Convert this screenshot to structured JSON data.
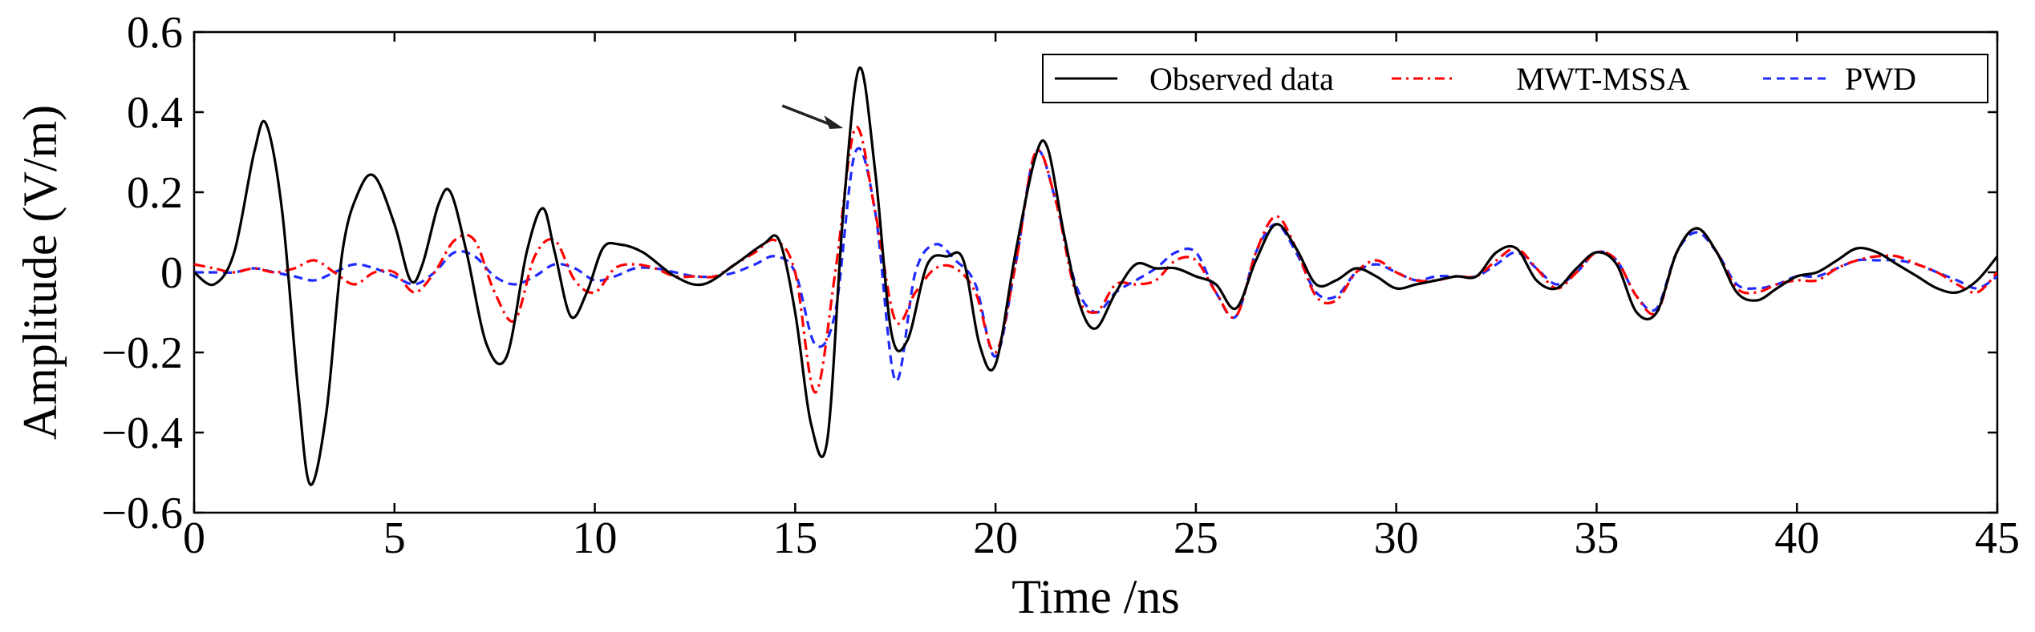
{
  "chart_data": {
    "type": "line",
    "title": "",
    "xlabel": "Time /ns",
    "ylabel": "Amplitude (V/m)",
    "xlim": [
      0,
      45
    ],
    "ylim": [
      -0.6,
      0.6
    ],
    "xticks": [
      0,
      5,
      10,
      15,
      20,
      25,
      30,
      35,
      40,
      45
    ],
    "xtick_labels": [
      "0",
      "5",
      "10",
      "15",
      "20",
      "25",
      "30",
      "35",
      "40",
      "45"
    ],
    "yticks": [
      0.6,
      0.4,
      0.2,
      0,
      -0.2,
      -0.4,
      -0.6
    ],
    "ytick_labels": [
      "0.6",
      "0.4",
      "0.2",
      "0",
      "−0.2",
      "−0.4",
      "−0.6"
    ],
    "grid": false,
    "legend_position": "top-right",
    "annotation": {
      "type": "arrow",
      "points_to": [
        16.2,
        0.36
      ]
    },
    "series": [
      {
        "name": "Observed data",
        "color": "#000000",
        "style": "solid",
        "x": [
          0,
          0.5,
          1,
          1.5,
          1.8,
          2.2,
          2.6,
          2.9,
          3.3,
          3.7,
          4.1,
          4.5,
          5,
          5.4,
          5.7,
          6.1,
          6.4,
          6.8,
          7.3,
          7.8,
          8.3,
          8.7,
          9,
          9.4,
          9.8,
          10.2,
          10.6,
          11.2,
          12,
          12.7,
          13.5,
          14.2,
          14.6,
          15,
          15.4,
          15.8,
          16.2,
          16.6,
          17,
          17.4,
          17.8,
          18.3,
          18.8,
          19.2,
          19.6,
          20,
          20.5,
          21,
          21.3,
          21.7,
          22.1,
          22.5,
          23,
          23.5,
          24,
          24.5,
          25,
          25.5,
          26,
          26.5,
          27,
          27.5,
          28,
          28.5,
          29,
          29.5,
          30,
          30.5,
          31,
          31.5,
          32,
          32.5,
          33,
          33.5,
          34,
          34.5,
          35,
          35.5,
          36,
          36.5,
          37,
          37.5,
          38,
          38.5,
          39,
          39.5,
          40,
          40.5,
          41,
          41.5,
          42,
          42.5,
          43,
          43.5,
          44,
          44.5,
          45
        ],
        "y": [
          0,
          -0.03,
          0.05,
          0.3,
          0.37,
          0.15,
          -0.3,
          -0.53,
          -0.35,
          0.05,
          0.2,
          0.24,
          0.12,
          -0.02,
          0.02,
          0.17,
          0.2,
          0.05,
          -0.18,
          -0.21,
          0.05,
          0.16,
          0.05,
          -0.11,
          -0.05,
          0.06,
          0.07,
          0.05,
          -0.01,
          -0.03,
          0.02,
          0.07,
          0.08,
          -0.1,
          -0.38,
          -0.42,
          0.15,
          0.51,
          0.25,
          -0.15,
          -0.17,
          0.02,
          0.04,
          0.03,
          -0.18,
          -0.23,
          0.05,
          0.29,
          0.31,
          0.1,
          -0.08,
          -0.14,
          -0.05,
          0.02,
          0.01,
          0.01,
          -0.01,
          -0.03,
          -0.09,
          0.03,
          0.12,
          0.06,
          -0.03,
          -0.02,
          0.01,
          -0.01,
          -0.04,
          -0.03,
          -0.02,
          -0.01,
          -0.01,
          0.05,
          0.06,
          -0.02,
          -0.04,
          0.01,
          0.05,
          0.02,
          -0.1,
          -0.1,
          0.05,
          0.11,
          0.05,
          -0.05,
          -0.07,
          -0.04,
          -0.01,
          0,
          0.03,
          0.06,
          0.05,
          0.02,
          -0.01,
          -0.04,
          -0.05,
          -0.02,
          0.04
        ]
      },
      {
        "name": "MWT-MSSA",
        "color": "#ff0000",
        "style": "dash-dot",
        "x": [
          0,
          0.5,
          1,
          1.5,
          2,
          2.5,
          3,
          3.5,
          4,
          4.5,
          5,
          5.5,
          6,
          6.5,
          7,
          7.5,
          8,
          8.5,
          9,
          9.5,
          10,
          10.5,
          11,
          11.5,
          12,
          12.5,
          13,
          13.5,
          14,
          14.5,
          15,
          15.5,
          16,
          16.5,
          17,
          17.5,
          18,
          18.5,
          19,
          19.5,
          20,
          20.5,
          21,
          21.5,
          22,
          22.5,
          23,
          23.5,
          24,
          24.5,
          25,
          25.5,
          26,
          26.5,
          27,
          27.5,
          28,
          28.5,
          29,
          29.5,
          30,
          30.5,
          31,
          31.5,
          32,
          32.5,
          33,
          33.5,
          34,
          34.5,
          35,
          35.5,
          36,
          36.5,
          37,
          37.5,
          38,
          38.5,
          39,
          39.5,
          40,
          40.5,
          41,
          41.5,
          42,
          42.5,
          43,
          43.5,
          44,
          44.5,
          45
        ],
        "y": [
          0.02,
          0.01,
          0,
          0.01,
          0,
          0.01,
          0.03,
          0,
          -0.03,
          0,
          0,
          -0.05,
          0,
          0.08,
          0.08,
          -0.05,
          -0.12,
          0.04,
          0.08,
          -0.02,
          -0.05,
          0.01,
          0.02,
          0.01,
          -0.01,
          -0.01,
          -0.01,
          0.02,
          0.05,
          0.08,
          0,
          -0.3,
          0,
          0.36,
          0.15,
          -0.12,
          -0.05,
          0.01,
          0.01,
          -0.05,
          -0.2,
          0.02,
          0.3,
          0.18,
          -0.05,
          -0.1,
          -0.03,
          -0.03,
          -0.02,
          0.03,
          0.03,
          -0.05,
          -0.11,
          0.05,
          0.14,
          0.06,
          -0.06,
          -0.07,
          0,
          0.03,
          0,
          -0.02,
          -0.02,
          -0.01,
          -0.01,
          0.03,
          0.06,
          0.01,
          -0.04,
          0,
          0.05,
          0.03,
          -0.06,
          -0.1,
          0.05,
          0.11,
          0.05,
          -0.04,
          -0.05,
          -0.03,
          -0.02,
          -0.02,
          0.01,
          0.03,
          0.04,
          0.04,
          0.02,
          0,
          -0.03,
          -0.05,
          0
        ]
      },
      {
        "name": "PWD",
        "color": "#1f2aff",
        "style": "dashed",
        "x": [
          0,
          0.5,
          1,
          1.5,
          2,
          2.5,
          3,
          3.5,
          4,
          4.5,
          5,
          5.5,
          6,
          6.5,
          7,
          7.5,
          8,
          8.5,
          9,
          9.5,
          10,
          10.5,
          11,
          11.5,
          12,
          12.5,
          13,
          13.5,
          14,
          14.5,
          15,
          15.5,
          16,
          16.5,
          17,
          17.5,
          18,
          18.5,
          19,
          19.5,
          20,
          20.5,
          21,
          21.5,
          22,
          22.5,
          23,
          23.5,
          24,
          24.5,
          25,
          25.5,
          26,
          26.5,
          27,
          27.5,
          28,
          28.5,
          29,
          29.5,
          30,
          30.5,
          31,
          31.5,
          32,
          32.5,
          33,
          33.5,
          34,
          34.5,
          35,
          35.5,
          36,
          36.5,
          37,
          37.5,
          38,
          38.5,
          39,
          39.5,
          40,
          40.5,
          41,
          41.5,
          42,
          42.5,
          43,
          43.5,
          44,
          44.5,
          45
        ],
        "y": [
          0,
          0,
          0,
          0.01,
          0,
          -0.01,
          -0.02,
          0,
          0.02,
          0.01,
          -0.01,
          -0.03,
          0,
          0.05,
          0.04,
          -0.01,
          -0.03,
          -0.01,
          0.02,
          0.01,
          -0.02,
          -0.01,
          0.01,
          0.01,
          0,
          -0.01,
          -0.01,
          0,
          0.02,
          0.04,
          0,
          -0.18,
          -0.1,
          0.3,
          0.15,
          -0.27,
          0,
          0.07,
          0.03,
          -0.03,
          -0.21,
          0.02,
          0.3,
          0.18,
          -0.03,
          -0.1,
          -0.05,
          -0.02,
          0.01,
          0.05,
          0.05,
          -0.05,
          -0.11,
          0.05,
          0.12,
          0.05,
          -0.05,
          -0.06,
          0,
          0.02,
          0,
          -0.02,
          -0.01,
          -0.01,
          -0.01,
          0.02,
          0.05,
          0.01,
          -0.03,
          0,
          0.05,
          0.03,
          -0.06,
          -0.09,
          0.05,
          0.1,
          0.05,
          -0.03,
          -0.04,
          -0.03,
          -0.01,
          -0.01,
          0.01,
          0.03,
          0.03,
          0.03,
          0.02,
          0,
          -0.02,
          -0.04,
          -0.01
        ]
      }
    ]
  }
}
